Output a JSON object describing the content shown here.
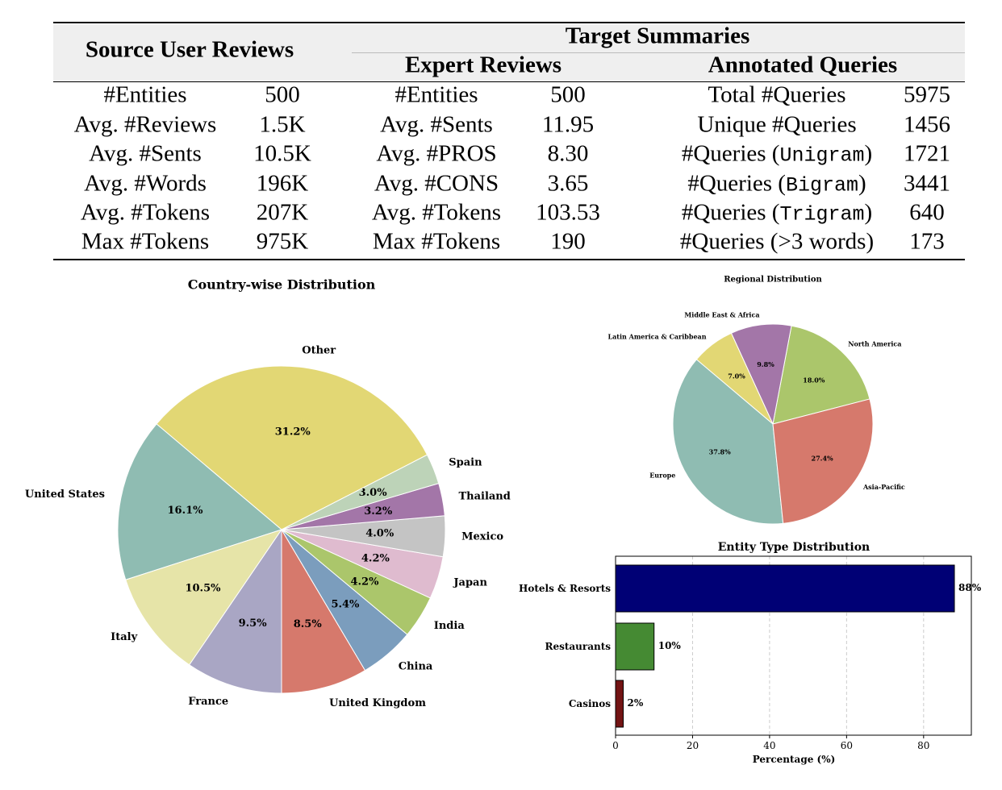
{
  "table": {
    "header_source": "Source User Reviews",
    "header_target": "Target Summaries",
    "header_expert": "Expert Reviews",
    "header_queries": "Annotated Queries",
    "source_rows": [
      {
        "label": "#Entities",
        "value": "500"
      },
      {
        "label": "Avg. #Reviews",
        "value": "1.5K"
      },
      {
        "label": "Avg. #Sents",
        "value": "10.5K"
      },
      {
        "label": "Avg. #Words",
        "value": "196K"
      },
      {
        "label": "Avg. #Tokens",
        "value": "207K"
      },
      {
        "label": "Max #Tokens",
        "value": "975K"
      }
    ],
    "expert_rows": [
      {
        "label": "#Entities",
        "value": "500"
      },
      {
        "label": "Avg. #Sents",
        "value": "11.95"
      },
      {
        "label": "Avg. #PROS",
        "value": "8.30"
      },
      {
        "label": "Avg. #CONS",
        "value": "3.65"
      },
      {
        "label": "Avg. #Tokens",
        "value": "103.53"
      },
      {
        "label": "Max #Tokens",
        "value": "190"
      }
    ],
    "query_rows": [
      {
        "pre": "Total #Queries",
        "mono": "",
        "post": "",
        "value": "5975"
      },
      {
        "pre": "Unique #Queries",
        "mono": "",
        "post": "",
        "value": "1456"
      },
      {
        "pre": "#Queries (",
        "mono": "Unigram",
        "post": ")",
        "value": "1721"
      },
      {
        "pre": "#Queries (",
        "mono": "Bigram",
        "post": ")",
        "value": "3441"
      },
      {
        "pre": "#Queries (",
        "mono": "Trigram",
        "post": ")",
        "value": "640"
      },
      {
        "pre": "#Queries (>3 words)",
        "mono": "",
        "post": "",
        "value": "173"
      }
    ]
  },
  "chart_data": [
    {
      "type": "pie",
      "title": "Country-wise Distribution",
      "start_angle_deg": 270,
      "slices": [
        {
          "label": "United Kingdom",
          "value": 8.5,
          "pct": "8.5%",
          "color": "#d6796c"
        },
        {
          "label": "China",
          "value": 5.4,
          "pct": "5.4%",
          "color": "#7b9dbd"
        },
        {
          "label": "India",
          "value": 4.2,
          "pct": "4.2%",
          "color": "#abc66b"
        },
        {
          "label": "Japan",
          "value": 4.2,
          "pct": "4.2%",
          "color": "#dfbbcf"
        },
        {
          "label": "Mexico",
          "value": 4.0,
          "pct": "4.0%",
          "color": "#c4c4c4"
        },
        {
          "label": "Thailand",
          "value": 3.2,
          "pct": "3.2%",
          "color": "#a376a8"
        },
        {
          "label": "Spain",
          "value": 3.0,
          "pct": "3.0%",
          "color": "#bdd3b8"
        },
        {
          "label": "Other",
          "value": 31.2,
          "pct": "31.2%",
          "color": "#e2d774"
        },
        {
          "label": "United States",
          "value": 16.1,
          "pct": "16.1%",
          "color": "#8fbcb2"
        },
        {
          "label": "Italy",
          "value": 10.5,
          "pct": "10.5%",
          "color": "#e6e4a8"
        },
        {
          "label": "France",
          "value": 9.5,
          "pct": "9.5%",
          "color": "#a9a6c4"
        }
      ]
    },
    {
      "type": "pie",
      "title": "Regional Distribution",
      "start_angle_deg": 14.5,
      "slices": [
        {
          "label": "North America",
          "value": 18.0,
          "pct": "18.0%",
          "color": "#abc66b"
        },
        {
          "label": "Middle East & Africa",
          "value": 9.8,
          "pct": "9.8%",
          "color": "#a376a8"
        },
        {
          "label": "Latin America & Caribbean",
          "value": 7.0,
          "pct": "7.0%",
          "color": "#e2d774"
        },
        {
          "label": "Europe",
          "value": 37.8,
          "pct": "37.8%",
          "color": "#8fbcb2"
        },
        {
          "label": "Asia-Pacific",
          "value": 27.4,
          "pct": "27.4%",
          "color": "#d6796c"
        }
      ]
    },
    {
      "type": "bar",
      "orientation": "horizontal",
      "title": "Entity Type Distribution",
      "xlabel": "Percentage (%)",
      "ylabel": "",
      "xlim": [
        0,
        92.4
      ],
      "xticks": [
        0,
        20,
        40,
        60,
        80
      ],
      "grid": "x-dashed",
      "categories": [
        "Hotels & Resorts",
        "Restaurants",
        "Casinos"
      ],
      "values": [
        88,
        10,
        2
      ],
      "value_labels": [
        "88%",
        "10%",
        "2%"
      ],
      "colors": [
        "#000075",
        "#458a33",
        "#731414"
      ]
    }
  ]
}
